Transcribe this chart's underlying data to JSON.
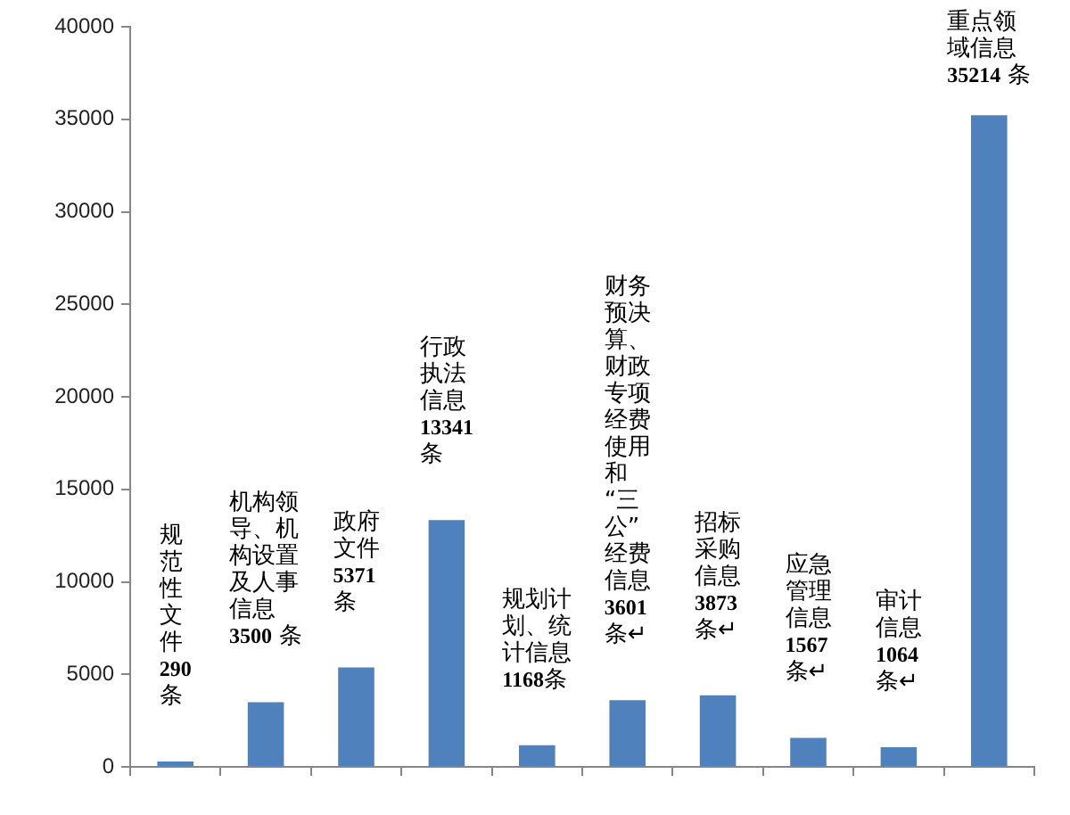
{
  "chart_data": {
    "type": "bar",
    "categories": [
      null,
      null,
      null,
      null,
      null,
      null,
      null,
      null,
      null,
      null
    ],
    "values": [
      290,
      3500,
      5371,
      13341,
      1168,
      3601,
      3873,
      1567,
      1064,
      35214
    ],
    "color": "#4f81bd",
    "ylim": [
      0,
      40000
    ],
    "yticks": [
      0,
      5000,
      10000,
      15000,
      20000,
      25000,
      30000,
      35000,
      40000
    ],
    "value_labels": [
      "规范性文件290条",
      "机构领导、机构设置及人事信息3500 条",
      "政府文件5371条",
      "行政执法信息13341条",
      "规划计划、统计信息1168条",
      "财务预决算、财政专项经费使用和“三公”经费信息3601条↵",
      "招标采购信息3873条↵",
      "应急管理信息1567条↵",
      "审计信息1064条↵",
      "重点领域信息35214 条"
    ]
  }
}
